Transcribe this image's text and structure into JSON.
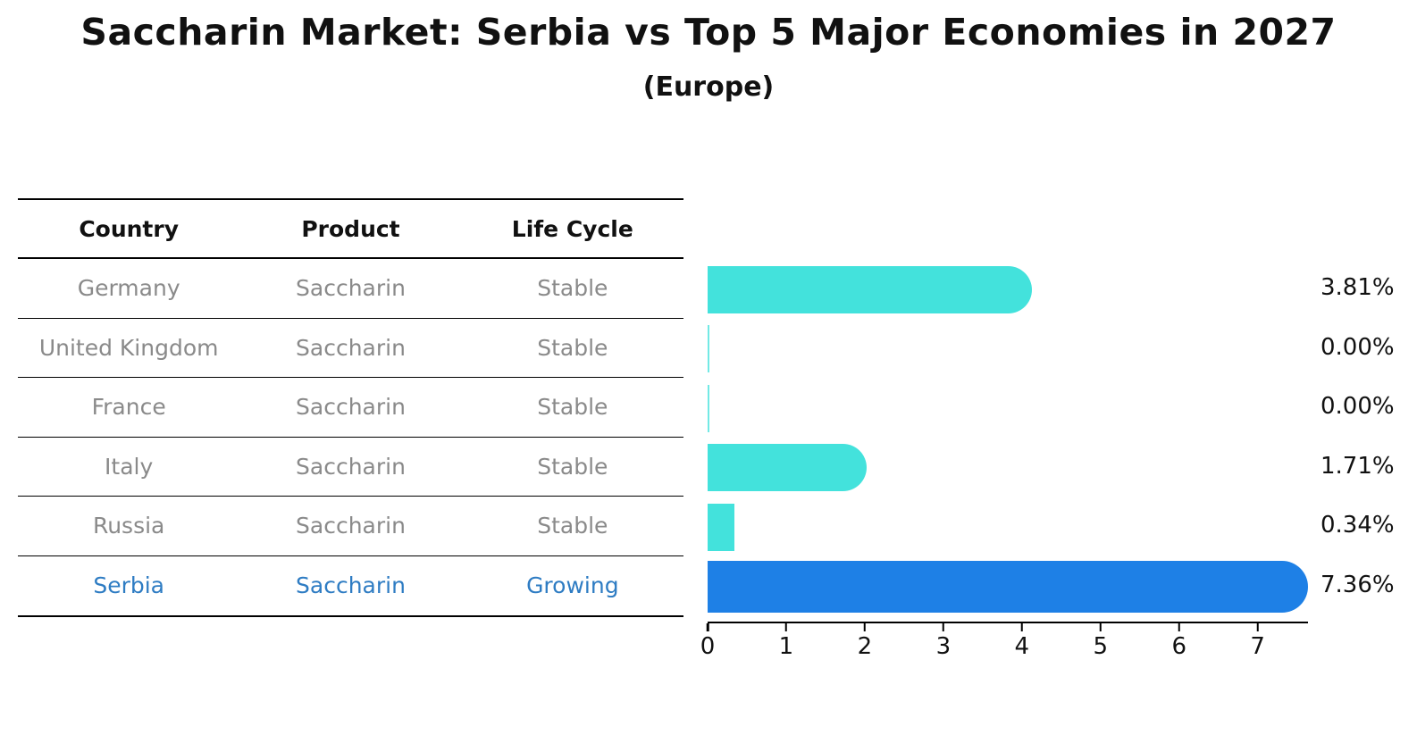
{
  "title": "Saccharin Market: Serbia vs Top 5 Major Economies in 2027",
  "subtitle": "(Europe)",
  "table": {
    "headers": [
      "Country",
      "Product",
      "Life Cycle"
    ],
    "rows": [
      {
        "country": "Germany",
        "product": "Saccharin",
        "life_cycle": "Stable",
        "highlight": false
      },
      {
        "country": "United Kingdom",
        "product": "Saccharin",
        "life_cycle": "Stable",
        "highlight": false
      },
      {
        "country": "France",
        "product": "Saccharin",
        "life_cycle": "Stable",
        "highlight": false
      },
      {
        "country": "Italy",
        "product": "Saccharin",
        "life_cycle": "Stable",
        "highlight": false
      },
      {
        "country": "Russia",
        "product": "Saccharin",
        "life_cycle": "Stable",
        "highlight": false
      },
      {
        "country": "Serbia",
        "product": "Saccharin",
        "life_cycle": "Growing",
        "highlight": true
      }
    ]
  },
  "chart_data": {
    "type": "bar",
    "orientation": "horizontal",
    "categories": [
      "Germany",
      "United Kingdom",
      "France",
      "Italy",
      "Russia",
      "Serbia"
    ],
    "values": [
      3.81,
      0.0,
      0.0,
      1.71,
      0.34,
      7.36
    ],
    "value_labels": [
      "3.81%",
      "0.00%",
      "0.00%",
      "1.71%",
      "0.34%",
      "7.36%"
    ],
    "x_ticks": [
      0,
      1,
      2,
      3,
      4,
      5,
      6,
      7
    ],
    "xlim": [
      0,
      7.64
    ],
    "highlight_category": "Serbia",
    "legend": "none",
    "grid": false,
    "colors": {
      "bar_default": "#43e2dc",
      "bar_highlight": "#1e80e6",
      "highlight_text": "#2e7cc3",
      "row_text": "#8a8a8a",
      "axis": "#000000"
    }
  }
}
